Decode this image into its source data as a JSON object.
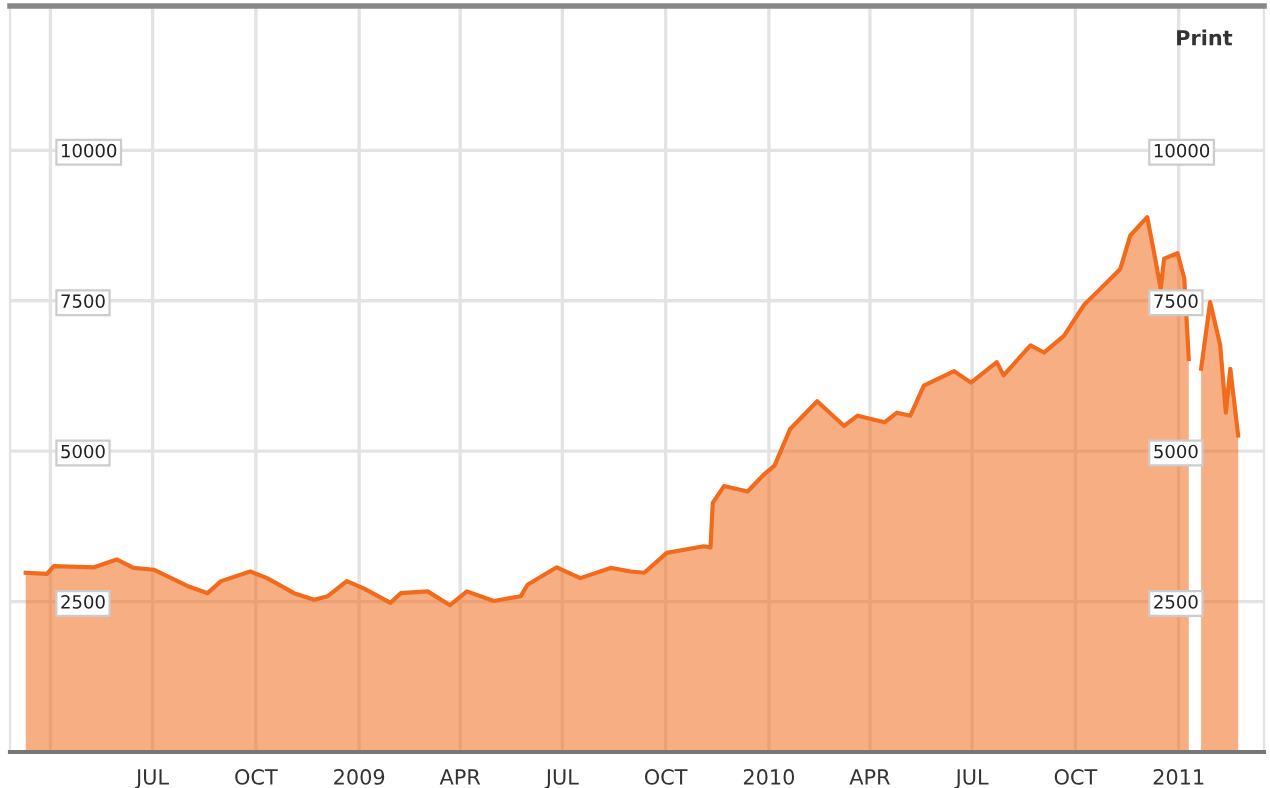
{
  "chart_data": {
    "type": "area",
    "annotations": [
      "Print"
    ],
    "x": [
      "2008-03-10",
      "2008-03-29",
      "2008-04-04",
      "2008-05-10",
      "2008-05-30",
      "2008-06-14",
      "2008-07-02",
      "2008-08-01",
      "2008-08-19",
      "2008-08-31",
      "2008-09-26",
      "2008-10-11",
      "2008-11-04",
      "2008-11-22",
      "2008-12-04",
      "2008-12-21",
      "2009-01-05",
      "2009-01-29",
      "2009-02-07",
      "2009-03-03",
      "2009-03-23",
      "2009-04-07",
      "2009-05-01",
      "2009-05-25",
      "2009-05-31",
      "2009-06-26",
      "2009-07-17",
      "2009-08-13",
      "2009-08-31",
      "2009-09-12",
      "2009-10-02",
      "2009-11-04",
      "2009-11-10",
      "2009-11-12",
      "2009-11-22",
      "2009-12-13",
      "2009-12-28",
      "2010-01-06",
      "2010-01-20",
      "2010-02-13",
      "2010-03-09",
      "2010-03-21",
      "2010-04-14",
      "2010-04-25",
      "2010-05-07",
      "2010-05-19",
      "2010-06-15",
      "2010-06-30",
      "2010-07-23",
      "2010-07-29",
      "2010-08-22",
      "2010-09-03",
      "2010-09-21",
      "2010-10-09",
      "2010-10-20",
      "2010-11-10",
      "2010-11-19",
      "2010-12-04",
      "2010-12-10",
      "2010-12-16",
      "2010-12-19",
      "2010-12-31",
      "2011-01-06",
      "2011-01-10",
      "2011-01-15",
      "2011-01-21",
      "2011-01-29",
      "2011-02-07",
      "2011-02-12",
      "2011-02-16",
      "2011-02-23"
    ],
    "series": [
      {
        "color": "#f26b1d",
        "values": [
          2980,
          2960,
          3090,
          3070,
          3200,
          3060,
          3030,
          2760,
          2640,
          2840,
          3000,
          2890,
          2640,
          2530,
          2590,
          2840,
          2720,
          2480,
          2640,
          2670,
          2440,
          2670,
          2510,
          2590,
          2780,
          3070,
          2890,
          3060,
          3000,
          2980,
          3310,
          3420,
          3400,
          4140,
          4420,
          4330,
          4620,
          4760,
          5370,
          5830,
          5420,
          5590,
          5480,
          5640,
          5590,
          6090,
          6330,
          6140,
          6480,
          6260,
          6760,
          6640,
          6920,
          7440,
          7640,
          8030,
          8590,
          8890,
          8310,
          7700,
          8200,
          8290,
          7870,
          6530,
          null,
          6370,
          7480,
          6760,
          5640,
          6370,
          5260
        ]
      }
    ],
    "xlim": [
      "2008-02-25",
      "2011-03-18"
    ],
    "xticks": [
      {
        "value": "2008-04-01",
        "label": null
      },
      {
        "value": "2008-07-01",
        "label": "JUL"
      },
      {
        "value": "2008-10-01",
        "label": "OCT"
      },
      {
        "value": "2009-01-01",
        "label": "2009"
      },
      {
        "value": "2009-04-01",
        "label": "APR"
      },
      {
        "value": "2009-07-01",
        "label": "JUL"
      },
      {
        "value": "2009-10-01",
        "label": "OCT"
      },
      {
        "value": "2010-01-01",
        "label": "2010"
      },
      {
        "value": "2010-04-01",
        "label": "APR"
      },
      {
        "value": "2010-07-01",
        "label": "JUL"
      },
      {
        "value": "2010-10-01",
        "label": "OCT"
      },
      {
        "value": "2011-01-01",
        "label": "2011"
      }
    ],
    "ylim": [
      0,
      12400
    ],
    "yticks": [
      2500,
      5000,
      7500,
      10000
    ],
    "y2lim": [
      0,
      12400
    ],
    "y2ticks": [
      2500,
      5000,
      7500,
      10000
    ],
    "grid": true
  }
}
